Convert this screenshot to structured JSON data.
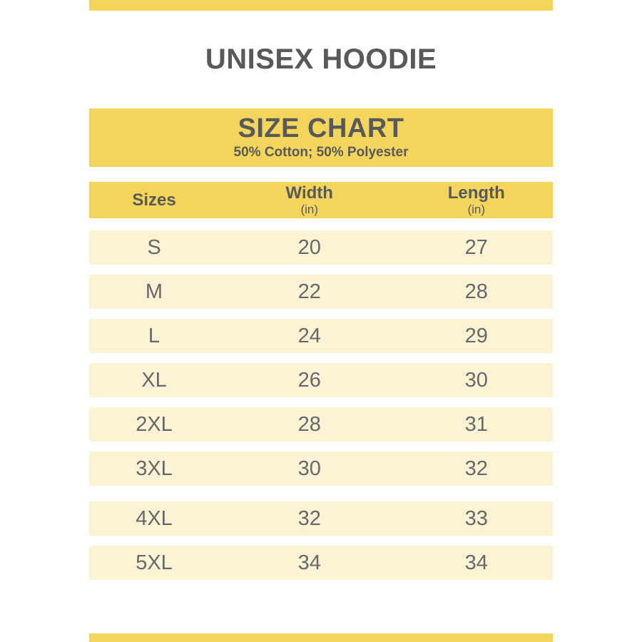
{
  "colors": {
    "accent_yellow": "#F3D55B",
    "row_cream": "#FBF3D3",
    "heading_text": "#58595B",
    "data_text": "#67686B",
    "background": "#FFFFFF"
  },
  "product": {
    "title": "UNISEX HOODIE"
  },
  "chart_data": {
    "type": "table",
    "title": "SIZE CHART",
    "subtitle": "50% Cotton; 50% Polyester",
    "columns": [
      {
        "label": "Sizes",
        "unit": ""
      },
      {
        "label": "Width",
        "unit": "(in)"
      },
      {
        "label": "Length",
        "unit": "(in)"
      }
    ],
    "rows": [
      [
        "S",
        "20",
        "27"
      ],
      [
        "M",
        "22",
        "28"
      ],
      [
        "L",
        "24",
        "29"
      ],
      [
        "XL",
        "26",
        "30"
      ],
      [
        "2XL",
        "28",
        "31"
      ],
      [
        "3XL",
        "30",
        "32"
      ],
      [
        "4XL",
        "32",
        "33"
      ],
      [
        "5XL",
        "34",
        "34"
      ]
    ]
  }
}
